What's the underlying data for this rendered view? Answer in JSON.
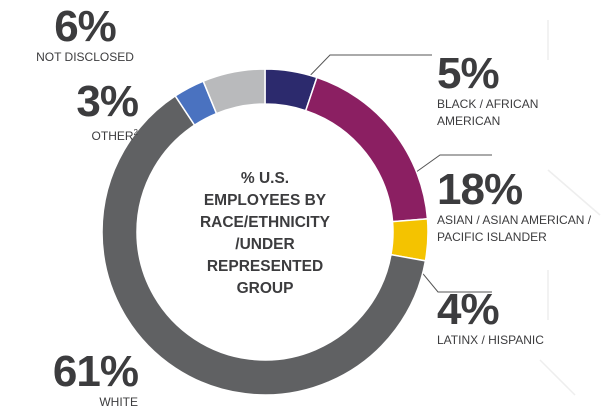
{
  "chart_data": {
    "type": "donut",
    "title_lines": [
      "% U.S.",
      "EMPLOYEES BY",
      "RACE/ETHNICITY",
      "/UNDER",
      "REPRESENTED",
      "GROUP"
    ],
    "categories": [
      "BLACK / AFRICAN AMERICAN",
      "ASIAN / ASIAN AMERICAN / PACIFIC ISLANDER",
      "LATINX / HISPANIC",
      "WHITE",
      "OTHER",
      "NOT DISCLOSED"
    ],
    "values": [
      5,
      18,
      4,
      61,
      3,
      6
    ],
    "value_labels": [
      "5%",
      "18%",
      "4%",
      "61%",
      "3%",
      "6%"
    ],
    "footnotes": [
      null,
      null,
      null,
      null,
      "2",
      null
    ],
    "colors": [
      "#2c2a6d",
      "#8b1f62",
      "#f4c300",
      "#606163",
      "#4a72c0",
      "#b9babc"
    ]
  }
}
